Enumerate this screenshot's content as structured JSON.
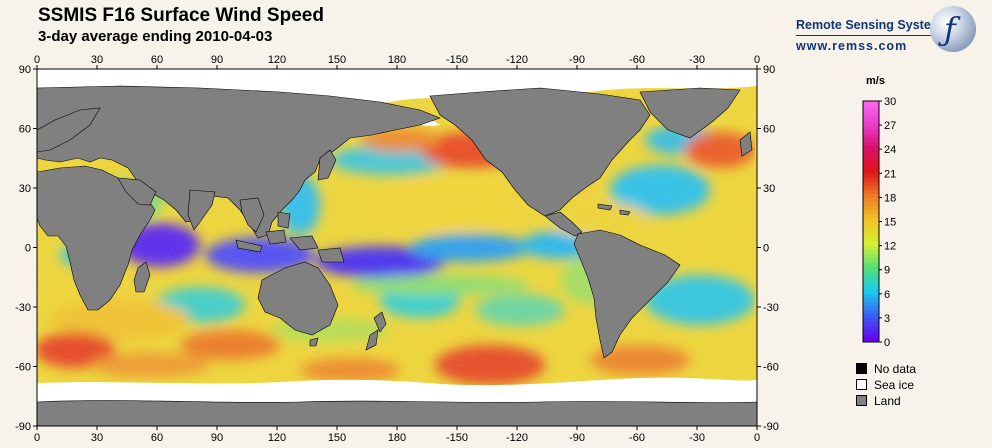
{
  "header": {
    "title": "SSMIS F16 Surface Wind Speed",
    "subtitle": "3-day average ending 2010-04-03"
  },
  "logo": {
    "name": "Remote Sensing Systems",
    "url": "www.remss.com"
  },
  "map": {
    "longitude_labels": [
      "0",
      "30",
      "60",
      "90",
      "120",
      "150",
      "180",
      "-150",
      "-120",
      "-90",
      "-60",
      "-30",
      "0"
    ],
    "latitude_labels": [
      "90",
      "60",
      "30",
      "0",
      "-30",
      "-60",
      "-90"
    ],
    "land_color": "#808080",
    "sea_ice_color": "#ffffff",
    "no_data_color": "#000000"
  },
  "colorbar": {
    "unit": "m/s",
    "tick_labels": [
      "30",
      "27",
      "24",
      "21",
      "18",
      "15",
      "12",
      "9",
      "6",
      "3",
      "0"
    ],
    "range": [
      0,
      30
    ]
  },
  "legend": {
    "items": [
      {
        "label": "No data",
        "color": "#000000"
      },
      {
        "label": "Sea ice",
        "color": "#ffffff"
      },
      {
        "label": "Land",
        "color": "#808080"
      }
    ]
  }
}
